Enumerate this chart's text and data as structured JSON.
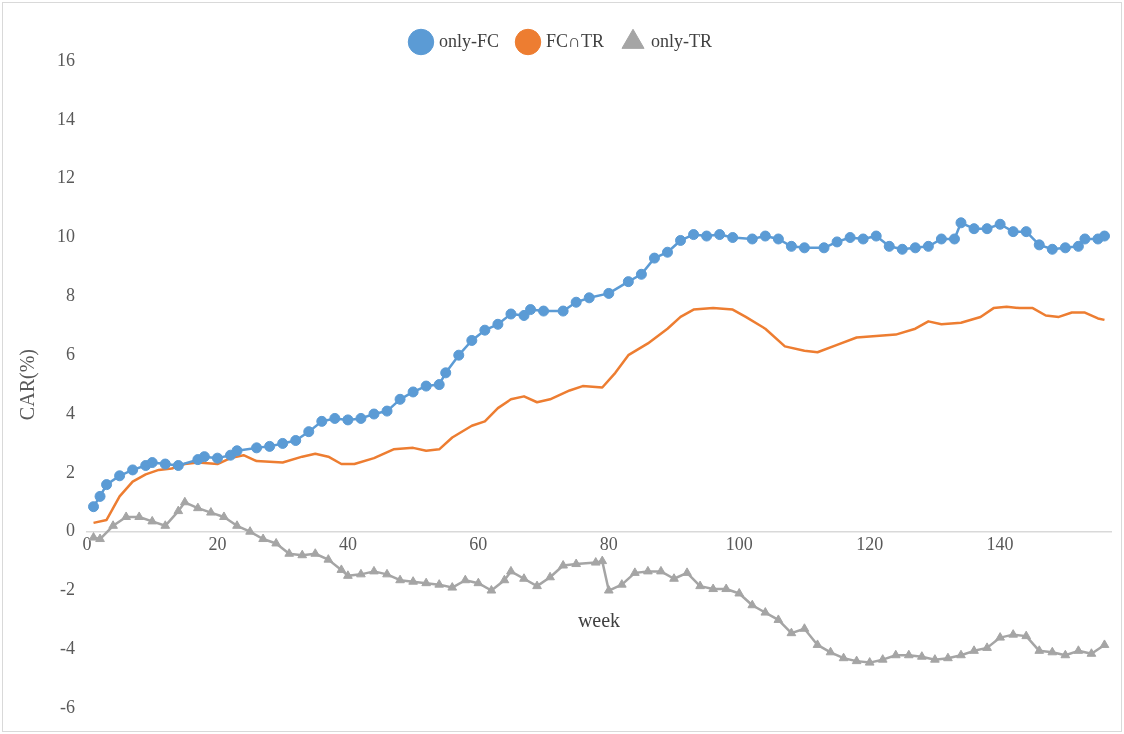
{
  "chart_data": {
    "type": "line",
    "xlabel": "week",
    "ylabel": "CAR(%)",
    "xlim": [
      0,
      157
    ],
    "xticks": [
      0,
      20,
      40,
      60,
      80,
      100,
      120,
      140
    ],
    "ylim": [
      -6,
      16
    ],
    "yticks": [
      -6,
      -4,
      -2,
      0,
      2,
      4,
      6,
      8,
      10,
      12,
      14,
      16
    ],
    "grid": false,
    "legend": "top",
    "line_style": "solid",
    "series": [
      {
        "name": "only-FC",
        "color": "#5b9bd5",
        "marker": "circle",
        "x": [
          1,
          2,
          3,
          5,
          7,
          9,
          10,
          12,
          14,
          17,
          18,
          20,
          22,
          23,
          26,
          28,
          30,
          32,
          34,
          36,
          38,
          40,
          42,
          44,
          46,
          48,
          50,
          52,
          54,
          55,
          57,
          59,
          61,
          63,
          65,
          67,
          68,
          70,
          73,
          75,
          77,
          80,
          83,
          85,
          87,
          89,
          91,
          93,
          95,
          97,
          99,
          102,
          104,
          106,
          108,
          110,
          113,
          115,
          117,
          119,
          121,
          123,
          125,
          127,
          129,
          131,
          133,
          134,
          136,
          138,
          140,
          142,
          144,
          146,
          148,
          150,
          152,
          153,
          155,
          156
        ],
        "values": [
          0.85,
          1.2,
          1.6,
          1.9,
          2.1,
          2.25,
          2.35,
          2.3,
          2.25,
          2.45,
          2.55,
          2.5,
          2.6,
          2.75,
          2.85,
          2.9,
          3.0,
          3.1,
          3.4,
          3.75,
          3.85,
          3.8,
          3.85,
          4.0,
          4.1,
          4.5,
          4.75,
          4.95,
          5.0,
          5.4,
          6.0,
          6.5,
          6.85,
          7.05,
          7.4,
          7.35,
          7.55,
          7.5,
          7.5,
          7.8,
          7.95,
          8.1,
          8.5,
          8.75,
          9.3,
          9.5,
          9.9,
          10.1,
          10.05,
          10.1,
          10.0,
          9.95,
          10.05,
          9.95,
          9.7,
          9.65,
          9.65,
          9.85,
          10.0,
          9.95,
          10.05,
          9.7,
          9.6,
          9.65,
          9.7,
          9.95,
          9.95,
          10.5,
          10.3,
          10.3,
          10.45,
          10.2,
          10.2,
          9.75,
          9.6,
          9.65,
          9.7,
          9.95,
          9.95,
          10.05
        ]
      },
      {
        "name": "FC∩TR",
        "color": "#ed7d31",
        "marker": "none",
        "x": [
          1,
          3,
          4,
          5,
          7,
          9,
          11,
          13,
          15,
          17,
          20,
          22,
          24,
          26,
          30,
          33,
          35,
          37,
          39,
          41,
          44,
          47,
          50,
          52,
          54,
          56,
          59,
          61,
          63,
          65,
          67,
          69,
          71,
          74,
          76,
          79,
          81,
          83,
          86,
          89,
          91,
          93,
          96,
          99,
          101,
          104,
          107,
          110,
          112,
          115,
          118,
          121,
          124,
          127,
          129,
          131,
          134,
          137,
          139,
          141,
          143,
          145,
          147,
          149,
          151,
          153,
          155,
          156
        ],
        "values": [
          0.3,
          0.4,
          0.8,
          1.2,
          1.7,
          1.95,
          2.1,
          2.15,
          2.3,
          2.35,
          2.3,
          2.5,
          2.6,
          2.4,
          2.35,
          2.55,
          2.65,
          2.55,
          2.3,
          2.3,
          2.5,
          2.8,
          2.85,
          2.75,
          2.8,
          3.2,
          3.6,
          3.75,
          4.2,
          4.5,
          4.6,
          4.4,
          4.5,
          4.8,
          4.95,
          4.9,
          5.4,
          6.0,
          6.4,
          6.9,
          7.3,
          7.55,
          7.6,
          7.55,
          7.3,
          6.9,
          6.3,
          6.15,
          6.1,
          6.35,
          6.6,
          6.65,
          6.7,
          6.9,
          7.15,
          7.05,
          7.1,
          7.3,
          7.6,
          7.65,
          7.6,
          7.6,
          7.35,
          7.3,
          7.45,
          7.45,
          7.25,
          7.2
        ]
      },
      {
        "name": "only-TR",
        "color": "#a5a5a5",
        "marker": "triangle",
        "x": [
          1,
          2,
          4,
          6,
          8,
          10,
          12,
          14,
          15,
          17,
          19,
          21,
          23,
          25,
          27,
          29,
          31,
          33,
          35,
          37,
          39,
          40,
          42,
          44,
          46,
          48,
          50,
          52,
          54,
          56,
          58,
          60,
          62,
          64,
          65,
          67,
          69,
          71,
          73,
          75,
          78,
          79,
          80,
          82,
          84,
          86,
          88,
          90,
          92,
          94,
          96,
          98,
          100,
          102,
          104,
          106,
          108,
          110,
          112,
          114,
          116,
          118,
          120,
          122,
          124,
          126,
          128,
          130,
          132,
          134,
          136,
          138,
          140,
          142,
          144,
          146,
          148,
          150,
          152,
          154,
          156
        ],
        "values": [
          -0.2,
          -0.25,
          0.2,
          0.5,
          0.5,
          0.35,
          0.2,
          0.7,
          1.0,
          0.8,
          0.65,
          0.5,
          0.2,
          0.0,
          -0.25,
          -0.4,
          -0.75,
          -0.8,
          -0.75,
          -0.95,
          -1.3,
          -1.5,
          -1.45,
          -1.35,
          -1.45,
          -1.65,
          -1.7,
          -1.75,
          -1.8,
          -1.9,
          -1.65,
          -1.75,
          -2.0,
          -1.65,
          -1.35,
          -1.6,
          -1.85,
          -1.55,
          -1.15,
          -1.1,
          -1.05,
          -1.0,
          -2.0,
          -1.8,
          -1.4,
          -1.35,
          -1.35,
          -1.6,
          -1.4,
          -1.85,
          -1.95,
          -1.95,
          -2.1,
          -2.5,
          -2.75,
          -3.0,
          -3.45,
          -3.3,
          -3.85,
          -4.1,
          -4.3,
          -4.4,
          -4.45,
          -4.35,
          -4.2,
          -4.2,
          -4.25,
          -4.35,
          -4.3,
          -4.2,
          -4.05,
          -3.95,
          -3.6,
          -3.5,
          -3.55,
          -4.05,
          -4.1,
          -4.2,
          -4.05,
          -4.15,
          -3.85
        ]
      }
    ]
  }
}
